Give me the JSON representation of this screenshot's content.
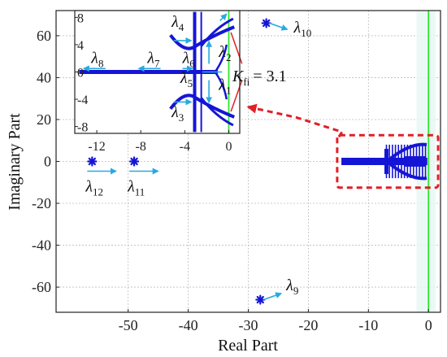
{
  "chart_data": {
    "type": "scatter",
    "xlabel": "Real Part",
    "ylabel": "Imaginary Part",
    "xlim": [
      -62,
      2
    ],
    "ylim": [
      -72,
      72
    ],
    "x_ticks": [
      "-50",
      "-40",
      "-30",
      "-20",
      "-10",
      "0"
    ],
    "y_ticks": [
      "60",
      "40",
      "20",
      "0",
      "-20",
      "-40",
      "-60"
    ],
    "grid": true,
    "annotation": "= 3.1",
    "annotation_symbol": "K",
    "annotation_subscript": "fi",
    "eigenvalues": [
      {
        "label": "λ",
        "index": "9",
        "x": -28,
        "y": -66,
        "dx": 3.5,
        "dy": 3
      },
      {
        "label": "λ",
        "index": "10",
        "x": -27,
        "y": 66,
        "dx": 3.5,
        "dy": -3
      },
      {
        "label": "λ",
        "index": "11",
        "x": -49,
        "y": 0,
        "dx": 4,
        "dy": 0
      },
      {
        "label": "λ",
        "index": "12",
        "x": -56,
        "y": 0,
        "dx": 4,
        "dy": 0
      }
    ],
    "inset": {
      "xlim": [
        -14,
        1
      ],
      "ylim": [
        -9,
        9
      ],
      "x_ticks": [
        "-12",
        "-8",
        "-4",
        "0"
      ],
      "y_ticks": [
        "8",
        "4",
        "0",
        "-4",
        "-8"
      ],
      "labels": [
        {
          "label": "λ",
          "index": "1"
        },
        {
          "label": "λ",
          "index": "2"
        },
        {
          "label": "λ",
          "index": "3"
        },
        {
          "label": "λ",
          "index": "4"
        },
        {
          "label": "λ",
          "index": "5"
        },
        {
          "label": "λ",
          "index": "6"
        },
        {
          "label": "λ",
          "index": "7"
        },
        {
          "label": "λ",
          "index": "8"
        }
      ]
    }
  }
}
